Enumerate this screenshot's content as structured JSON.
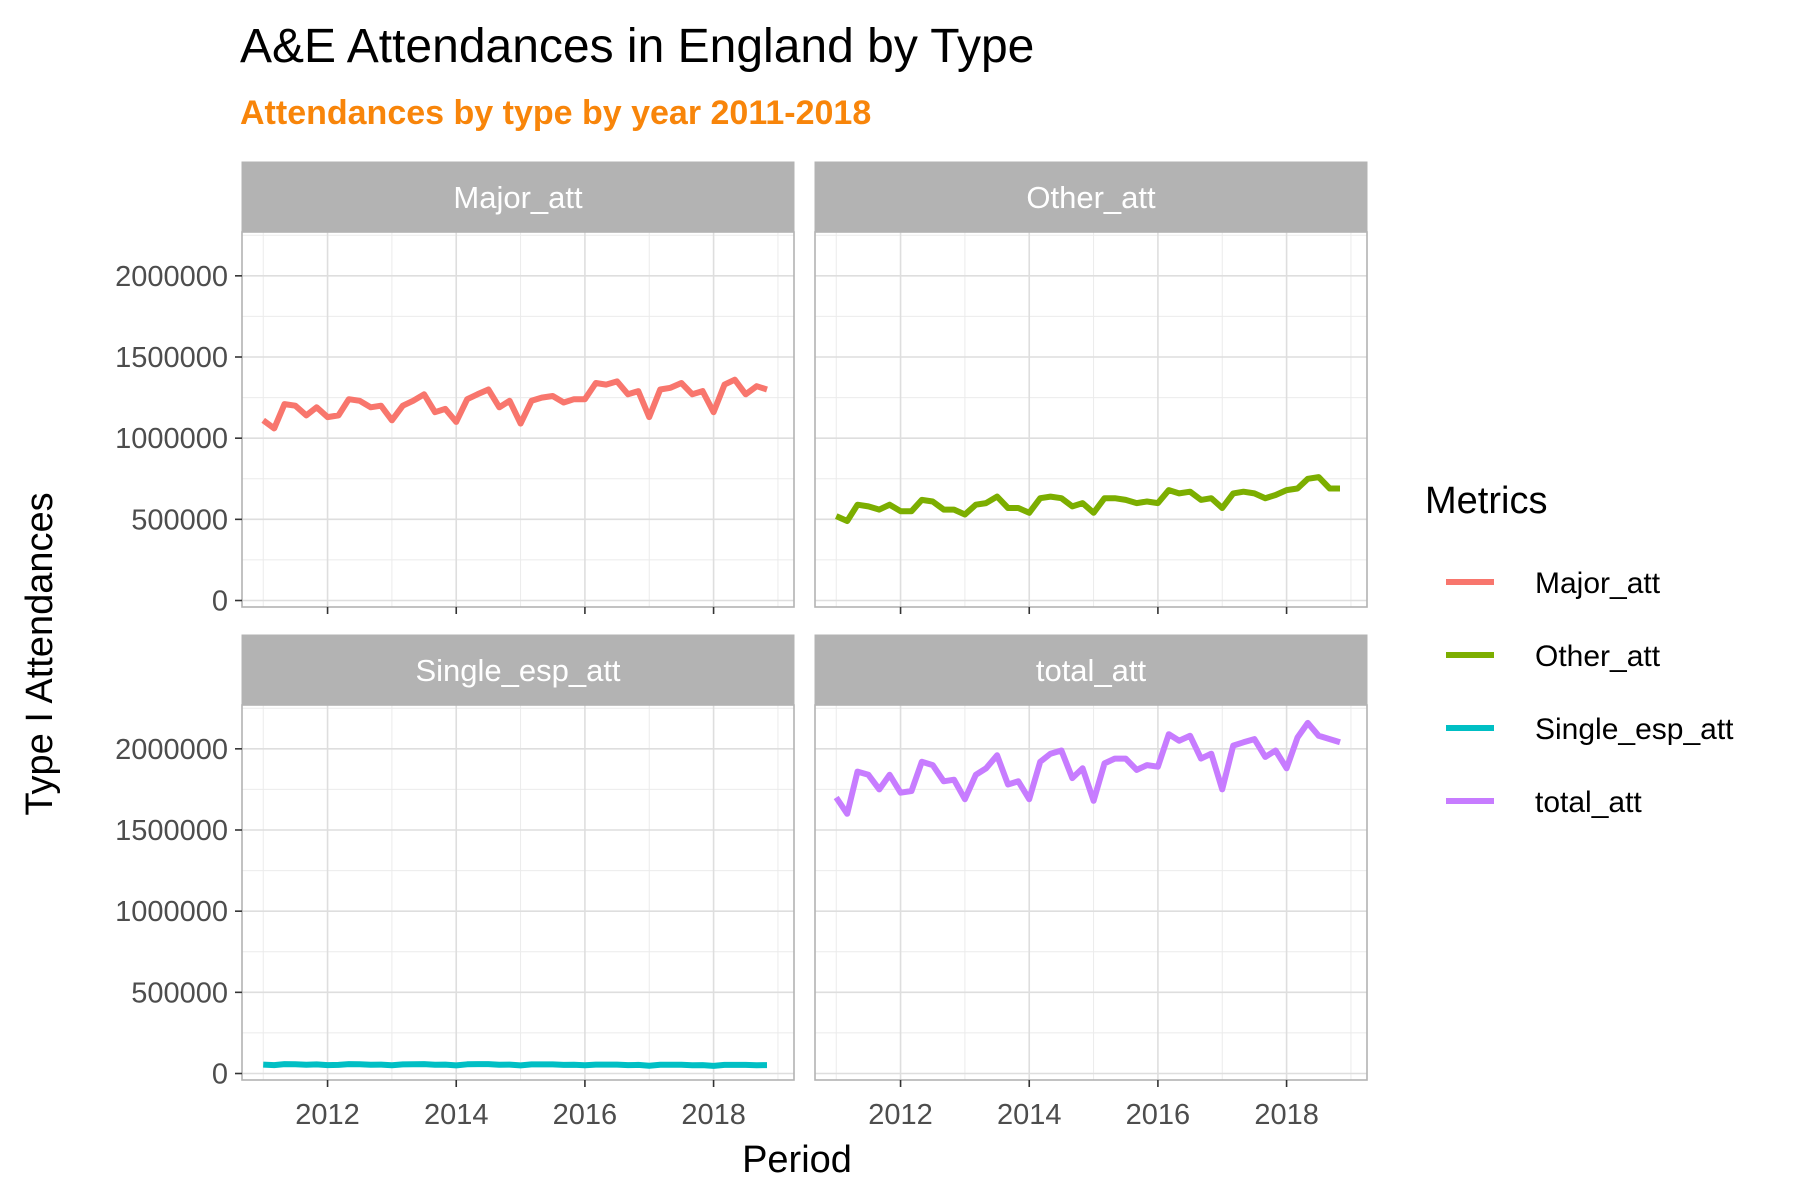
{
  "chart_data": {
    "type": "line",
    "title": "A&E Attendances in England by Type",
    "subtitle": "Attendances by type by year 2011-2018",
    "xlabel": "Period",
    "ylabel": "Type I Attendances",
    "xlim": [
      2010.67,
      2019.25
    ],
    "ylim": [
      -40000,
      2270000
    ],
    "x_ticks": [
      2012,
      2014,
      2016,
      2018
    ],
    "x_tick_labels": [
      "2012",
      "2014",
      "2016",
      "2018"
    ],
    "y_ticks": [
      0,
      500000,
      1000000,
      1500000,
      2000000
    ],
    "y_tick_labels": [
      "0",
      "500000",
      "1000000",
      "1500000",
      "2000000"
    ],
    "grid": true,
    "facets": "2x2 grid, shared axes",
    "legend": {
      "title": "Metrics",
      "position": "right"
    },
    "x": [
      2011.0,
      2011.17,
      2011.33,
      2011.5,
      2011.67,
      2011.83,
      2012.0,
      2012.17,
      2012.33,
      2012.5,
      2012.67,
      2012.83,
      2013.0,
      2013.17,
      2013.33,
      2013.5,
      2013.67,
      2013.83,
      2014.0,
      2014.17,
      2014.33,
      2014.5,
      2014.67,
      2014.83,
      2015.0,
      2015.17,
      2015.33,
      2015.5,
      2015.67,
      2015.83,
      2016.0,
      2016.17,
      2016.33,
      2016.5,
      2016.67,
      2016.83,
      2017.0,
      2017.17,
      2017.33,
      2017.5,
      2017.67,
      2017.83,
      2018.0,
      2018.17,
      2018.33,
      2018.5,
      2018.67,
      2018.83
    ],
    "series": [
      {
        "name": "Major_att",
        "color": "#F8766D",
        "values": [
          1110000,
          1060000,
          1210000,
          1200000,
          1140000,
          1190000,
          1130000,
          1140000,
          1240000,
          1230000,
          1190000,
          1200000,
          1110000,
          1200000,
          1230000,
          1270000,
          1160000,
          1180000,
          1100000,
          1240000,
          1270000,
          1300000,
          1190000,
          1230000,
          1090000,
          1230000,
          1250000,
          1260000,
          1220000,
          1240000,
          1240000,
          1340000,
          1330000,
          1350000,
          1270000,
          1290000,
          1130000,
          1300000,
          1310000,
          1340000,
          1270000,
          1290000,
          1160000,
          1330000,
          1360000,
          1270000,
          1320000,
          1300000
        ]
      },
      {
        "name": "Other_att",
        "color": "#7CAE00",
        "values": [
          520000,
          490000,
          590000,
          580000,
          560000,
          590000,
          550000,
          550000,
          620000,
          610000,
          560000,
          560000,
          530000,
          590000,
          600000,
          640000,
          570000,
          570000,
          540000,
          630000,
          640000,
          630000,
          580000,
          600000,
          540000,
          630000,
          630000,
          620000,
          600000,
          610000,
          600000,
          680000,
          660000,
          670000,
          620000,
          630000,
          570000,
          660000,
          670000,
          660000,
          630000,
          650000,
          680000,
          690000,
          750000,
          760000,
          690000,
          690000
        ]
      },
      {
        "name": "Single_esp_att",
        "color": "#00BFC4",
        "values": [
          55000,
          52000,
          58000,
          57000,
          54000,
          56000,
          52000,
          53000,
          58000,
          57000,
          54000,
          55000,
          51000,
          56000,
          57000,
          58000,
          54000,
          55000,
          50000,
          57000,
          58000,
          58000,
          54000,
          55000,
          50000,
          56000,
          56000,
          56000,
          53000,
          54000,
          51000,
          55000,
          55000,
          55000,
          52000,
          53000,
          48000,
          54000,
          54000,
          54000,
          51000,
          52000,
          47000,
          53000,
          53000,
          53000,
          51000,
          52000
        ]
      },
      {
        "name": "total_att",
        "color": "#C77CFF",
        "values": [
          1700000,
          1600000,
          1860000,
          1840000,
          1750000,
          1840000,
          1730000,
          1740000,
          1920000,
          1900000,
          1800000,
          1810000,
          1690000,
          1840000,
          1880000,
          1960000,
          1780000,
          1800000,
          1690000,
          1920000,
          1970000,
          1990000,
          1820000,
          1880000,
          1680000,
          1910000,
          1940000,
          1940000,
          1870000,
          1900000,
          1890000,
          2090000,
          2050000,
          2080000,
          1940000,
          1970000,
          1750000,
          2020000,
          2040000,
          2060000,
          1950000,
          1990000,
          1880000,
          2070000,
          2160000,
          2080000,
          2060000,
          2040000
        ]
      }
    ]
  }
}
